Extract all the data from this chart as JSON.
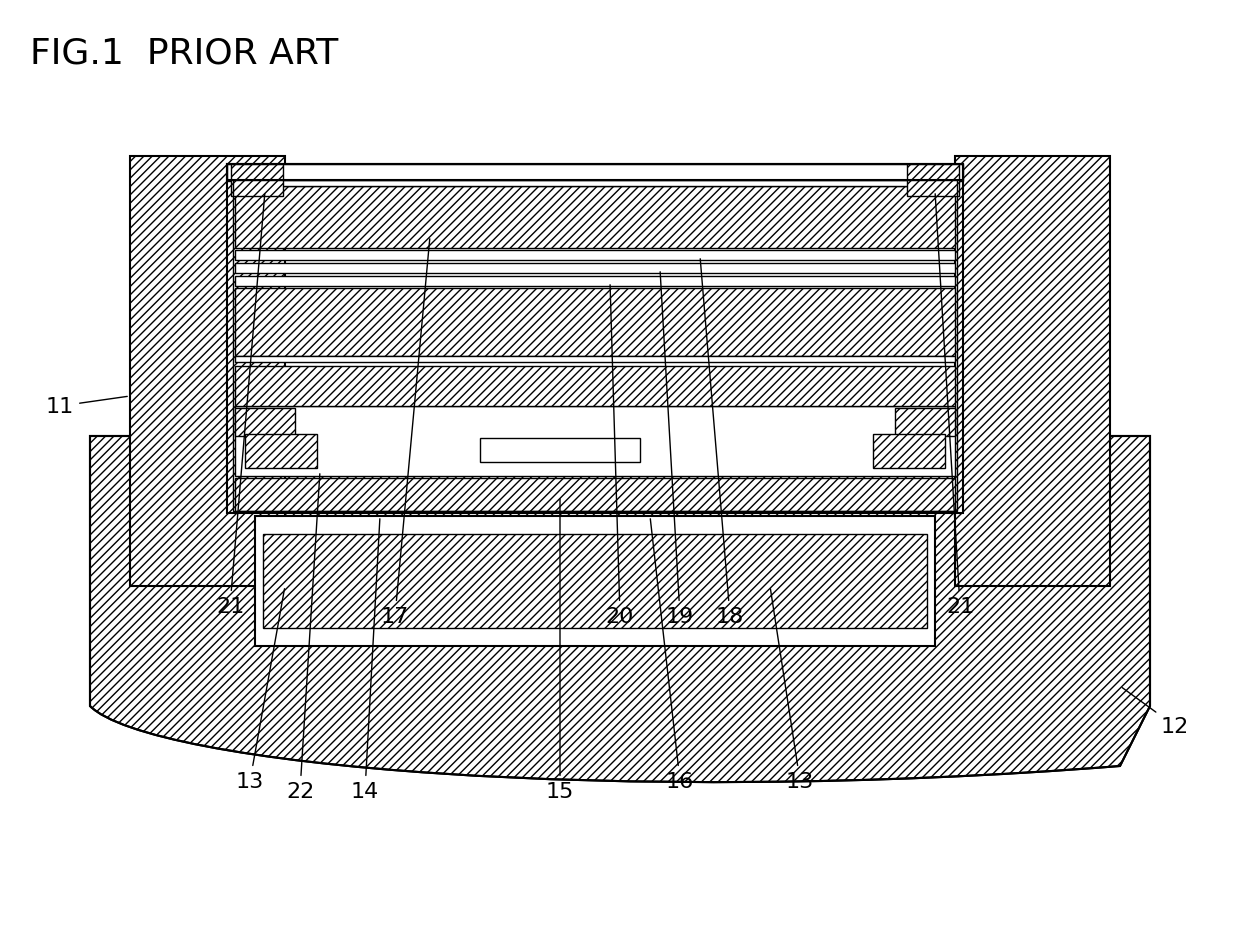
{
  "title": "FIG.1  PRIOR ART",
  "title_fontsize": 26,
  "bg_color": "#ffffff",
  "line_color": "#000000",
  "lw_thin": 1.0,
  "lw_med": 1.5,
  "lw_thick": 2.0
}
